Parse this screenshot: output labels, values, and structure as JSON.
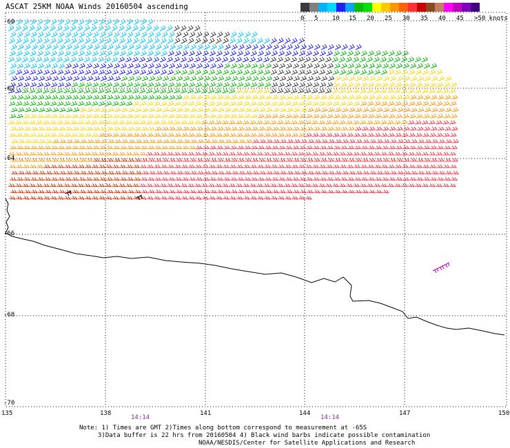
{
  "header": {
    "title": "ASCAT 25KM NOAA Winds 20160504 ascending"
  },
  "legend": {
    "colors": [
      "#3a3a3a",
      "#7f7f7f",
      "#00b4ff",
      "#00d8ff",
      "#1e1eff",
      "#0aa4ff",
      "#00c000",
      "#00e000",
      "#ffff00",
      "#ffc800",
      "#ff9600",
      "#ff6400",
      "#ff3030",
      "#c80000",
      "#8a4a1e",
      "#c08060",
      "#ff00ff",
      "#c000c0",
      "#8000c0",
      "#400080"
    ],
    "labels": [
      "0",
      "5",
      "10",
      "15",
      "20",
      "25",
      "30",
      "35",
      "40",
      "45",
      ">50 knots"
    ]
  },
  "axes": {
    "lat_labels": [
      "-60",
      "-62",
      "-64",
      "-66",
      "-68",
      "-70"
    ],
    "lon_labels": [
      "135",
      "138",
      "141",
      "144",
      "147",
      "150"
    ],
    "time_labels": [
      "14:14",
      "14:14"
    ]
  },
  "notes": {
    "line1": "Note: 1) Times are GMT 2)Times along bottom correspond to measurement at -65S",
    "line2": "3)Data buffer is 22 hrs from 20160504 4) Black wind barbs indicate possible contamination",
    "line3": "NOAA/NESDIS/Center for Satellite Applications and Research"
  }
}
